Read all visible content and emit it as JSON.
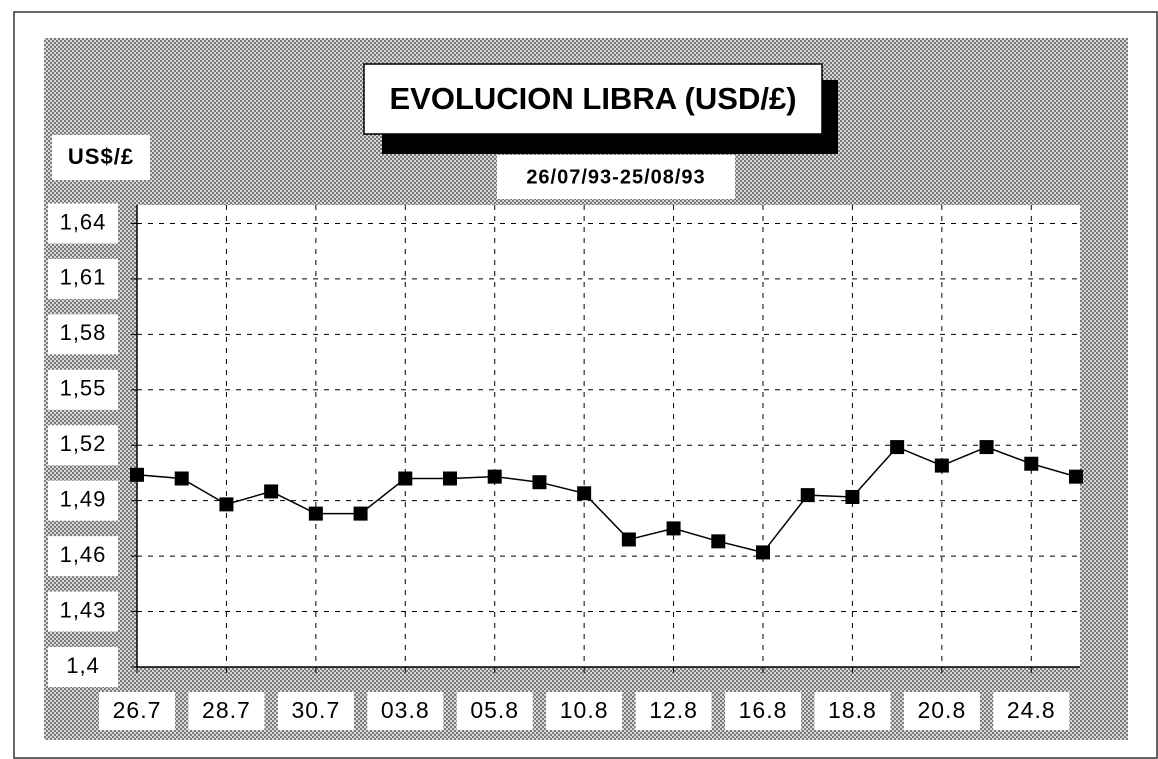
{
  "chart_data": {
    "type": "line",
    "title": "EVOLUCION LIBRA (USD/£)",
    "subtitle": "26/07/93-25/08/93",
    "y_label": "US$/£",
    "categories": [
      "26.7",
      null,
      "28.7",
      null,
      "30.7",
      null,
      "03.8",
      null,
      "05.8",
      null,
      "10.8",
      null,
      "12.8",
      null,
      "16.8",
      null,
      "18.8",
      null,
      "20.8",
      null,
      "24.8",
      null
    ],
    "values": [
      1.504,
      1.502,
      1.488,
      1.495,
      1.483,
      1.483,
      1.502,
      1.502,
      1.503,
      1.5,
      1.494,
      1.469,
      1.475,
      1.468,
      1.462,
      1.493,
      1.492,
      1.519,
      1.509,
      1.519,
      1.51,
      1.503
    ],
    "color": "#000000",
    "ylim": [
      1.4,
      1.65
    ],
    "yticks": [
      {
        "value": 1.4,
        "label": "1,4"
      },
      {
        "value": 1.43,
        "label": "1,43"
      },
      {
        "value": 1.46,
        "label": "1,46"
      },
      {
        "value": 1.49,
        "label": "1,49"
      },
      {
        "value": 1.52,
        "label": "1,52"
      },
      {
        "value": 1.55,
        "label": "1,55"
      },
      {
        "value": 1.58,
        "label": "1,58"
      },
      {
        "value": 1.61,
        "label": "1,61"
      },
      {
        "value": 1.64,
        "label": "1,64"
      }
    ],
    "grid": true
  }
}
